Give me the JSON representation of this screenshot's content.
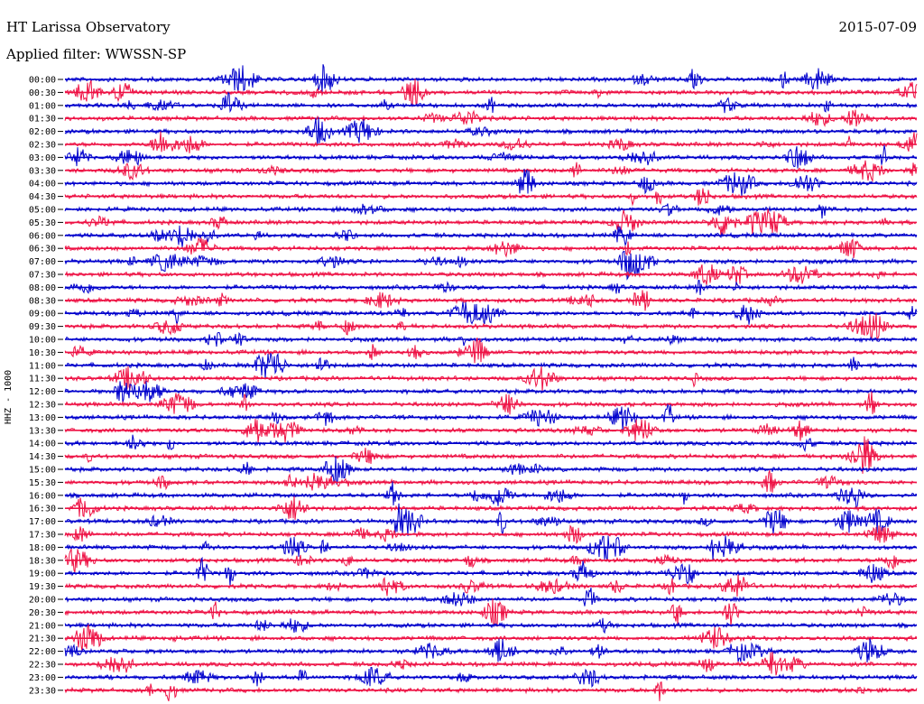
{
  "header": {
    "title": "HT Larissa Observatory",
    "date": "2015-07-09",
    "filter": "Applied filter: WWSSN-SP"
  },
  "channel_label": "HHZ - 1000",
  "chart_data": {
    "type": "line",
    "title": "HT Larissa Observatory",
    "ylabel": "HHZ - 1000",
    "colors": [
      "#0000cc",
      "#ee1144"
    ],
    "categories": [
      "00:00",
      "00:30",
      "01:00",
      "01:30",
      "02:00",
      "02:30",
      "03:00",
      "03:30",
      "04:00",
      "04:30",
      "05:00",
      "05:30",
      "06:00",
      "06:30",
      "07:00",
      "07:30",
      "08:00",
      "08:30",
      "09:00",
      "09:30",
      "10:00",
      "10:30",
      "11:00",
      "11:30",
      "12:00",
      "12:30",
      "13:00",
      "13:30",
      "14:00",
      "14:30",
      "15:00",
      "15:30",
      "16:00",
      "16:30",
      "17:00",
      "17:30",
      "18:00",
      "18:30",
      "19:00",
      "19:30",
      "20:00",
      "20:30",
      "21:00",
      "21:30",
      "22:00",
      "22:30",
      "23:00",
      "23:30"
    ],
    "grid": false
  }
}
